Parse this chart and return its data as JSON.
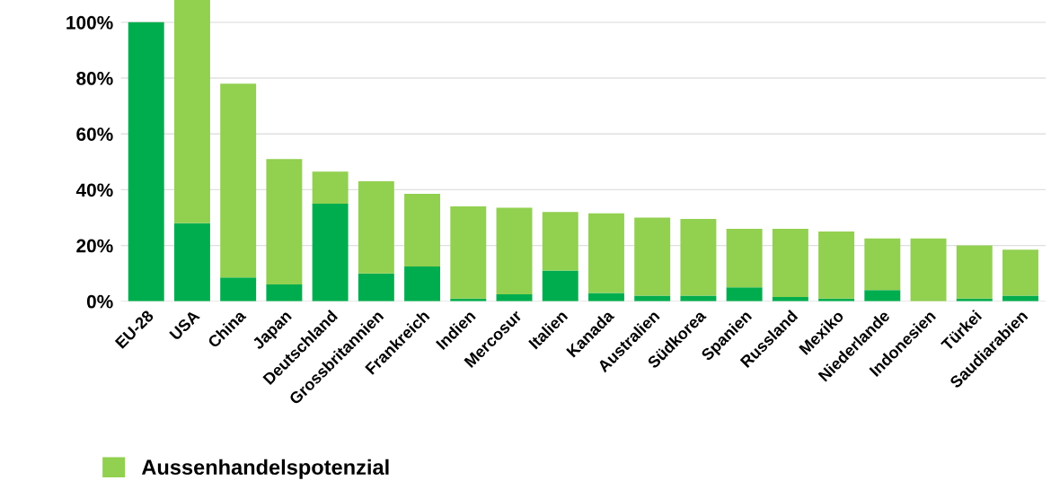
{
  "chart_data": {
    "type": "bar",
    "stacked": true,
    "categories": [
      "EU-28",
      "USA",
      "China",
      "Japan",
      "Deutschland",
      "Grossbritannien",
      "Frankreich",
      "Indien",
      "Mercosur",
      "Italien",
      "Kanada",
      "Australien",
      "Südkorea",
      "Spanien",
      "Russland",
      "Mexiko",
      "Niederlande",
      "Indonesien",
      "Türkei",
      "Saudiarabien"
    ],
    "series": [
      {
        "color": "#00ad4e",
        "values": [
          100,
          28,
          8.5,
          6,
          35,
          10,
          12.5,
          1,
          2.5,
          11,
          3,
          2,
          2,
          5,
          1.5,
          1,
          4,
          0,
          1,
          2
        ]
      },
      {
        "name": "Aussenhandelspotenzial",
        "color": "#92d050",
        "values": [
          0,
          80,
          69.5,
          45,
          11.5,
          33,
          26,
          33,
          31,
          21,
          28.5,
          28,
          27.5,
          21,
          24.5,
          24,
          18.5,
          22.5,
          19,
          16.5
        ]
      }
    ],
    "ylim": [
      0,
      108
    ],
    "yticks": [
      {
        "value": 0,
        "label": "0%"
      },
      {
        "value": 20,
        "label": "20%"
      },
      {
        "value": 40,
        "label": "40%"
      },
      {
        "value": 60,
        "label": "60%"
      },
      {
        "value": 80,
        "label": "80%"
      },
      {
        "value": 100,
        "label": "100%"
      }
    ],
    "grid": "y",
    "legend": "bottom left"
  }
}
